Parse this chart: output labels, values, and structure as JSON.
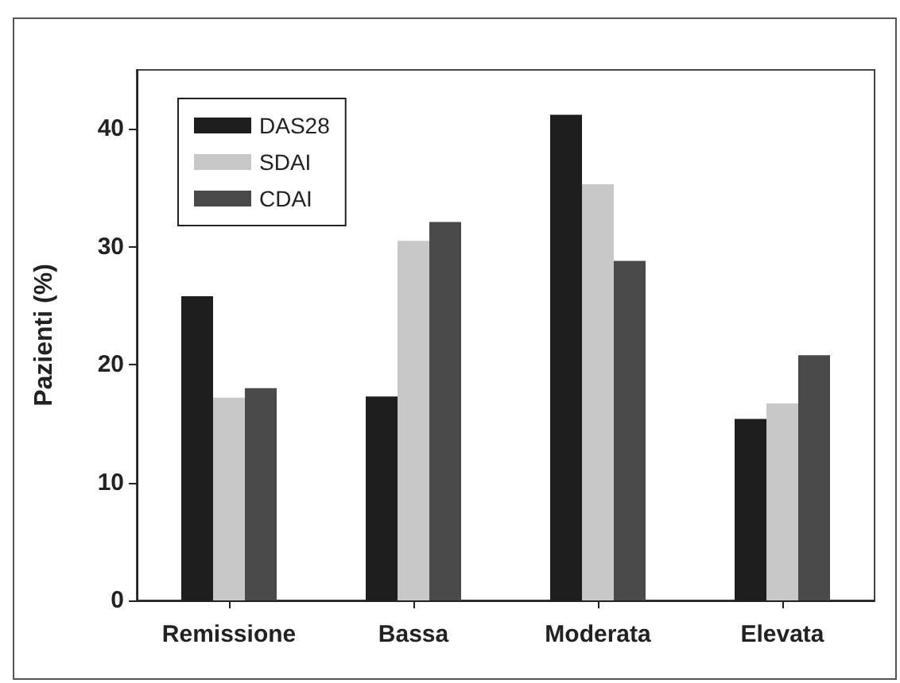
{
  "chart_data": {
    "type": "bar",
    "ylabel": "Pazienti (%)",
    "categories": [
      "Remissione",
      "Bassa",
      "Moderata",
      "Elevata"
    ],
    "series": [
      {
        "name": "DAS28",
        "color": "#1e1e1e",
        "values": [
          25.8,
          17.3,
          41.2,
          15.4
        ]
      },
      {
        "name": "SDAI",
        "color": "#c8c8c8",
        "values": [
          17.2,
          30.5,
          35.3,
          16.7
        ]
      },
      {
        "name": "CDAI",
        "color": "#4a4a4a",
        "values": [
          18.0,
          32.1,
          28.8,
          20.8
        ]
      }
    ],
    "ylim": [
      0,
      45
    ],
    "yticks": [
      0,
      10,
      20,
      30,
      40
    ],
    "grid": false,
    "legend": "top left"
  }
}
